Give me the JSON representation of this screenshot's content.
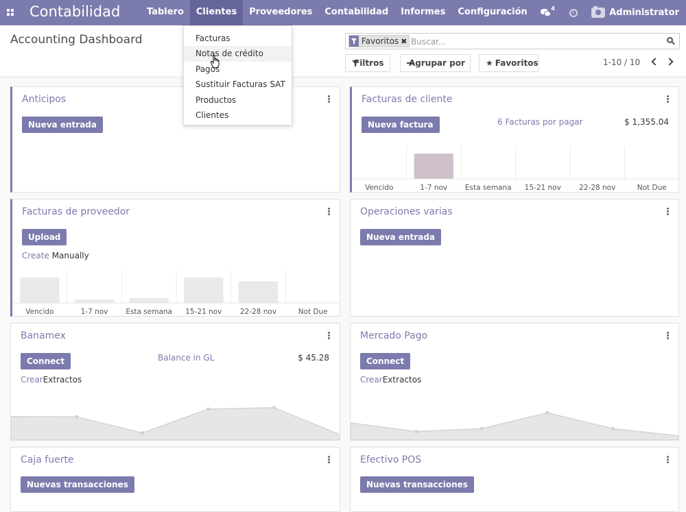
{
  "app": {
    "brand": "Contabilidad",
    "menu": [
      "Tablero",
      "Clientes",
      "Proveedores",
      "Contabilidad",
      "Informes",
      "Configuración"
    ],
    "active_menu": "Clientes",
    "chat_count": "4",
    "user": "Administrator"
  },
  "control_panel": {
    "title": "Accounting Dashboard",
    "facet": "Favoritos",
    "facet_close": "✖",
    "search_placeholder": "Buscar...",
    "buttons": {
      "filters": "Filtros",
      "group_by": "Agrupar por",
      "favorites": "Favoritos"
    },
    "pager": "1-10 / 10"
  },
  "dropdown": {
    "items": [
      "Facturas",
      "Notas de crédito",
      "Pagos",
      "Sustituir Facturas SAT",
      "Productos",
      "Clientes"
    ],
    "hover_index": 1
  },
  "colors": {
    "brand": "#7c7bad",
    "bar_fill": "#e9e9e9",
    "bar_highlight": "#cfc1cb",
    "area_fill": "#e6e6e6",
    "area_line": "#d4d4d4"
  },
  "cards": {
    "anticipos": {
      "title": "Anticipos",
      "button": "Nueva entrada"
    },
    "facturas_cliente": {
      "title": "Facturas de cliente",
      "button": "Nueva factura",
      "info": "6 Facturas por pagar",
      "amount": "$ 1,355.04"
    },
    "facturas_proveedor": {
      "title": "Facturas de proveedor",
      "button": "Upload",
      "link": "Create",
      "link_rest": " Manually"
    },
    "operaciones_varias": {
      "title": "Operaciones varias",
      "button": "Nueva entrada"
    },
    "banamex": {
      "title": "Banamex",
      "button": "Connect",
      "info": "Balance in GL",
      "amount": "$ 45.28",
      "link": "Crear",
      "link_rest": "Extractos"
    },
    "mercado_pago": {
      "title": "Mercado Pago",
      "button": "Connect",
      "link": "Crear",
      "link_rest": "Extractos"
    },
    "caja_fuerte": {
      "title": "Caja fuerte",
      "button": "Nuevas transacciones"
    },
    "efectivo_pos": {
      "title": "Efectivo POS",
      "button": "Nuevas transacciones"
    }
  },
  "chart_data": [
    {
      "type": "bar",
      "chart": "facturas_cliente",
      "categories": [
        "Vencido",
        "1-7 nov",
        "Esta semana",
        "15-21 nov",
        "22-28 nov",
        "Not Due"
      ],
      "values": [
        0,
        1,
        0,
        0,
        0,
        0
      ],
      "highlight_index": 1
    },
    {
      "type": "bar",
      "chart": "facturas_proveedor",
      "categories": [
        "Vencido",
        "1-7 nov",
        "Esta semana",
        "15-21 nov",
        "22-28 nov",
        "Not Due"
      ],
      "values": [
        1,
        0.13,
        0.2,
        1,
        0.85,
        0
      ]
    },
    {
      "type": "area",
      "chart": "banamex",
      "values": [
        0.72,
        0.71,
        0.15,
        0.98,
        1.03,
        0.1
      ]
    },
    {
      "type": "area",
      "chart": "mercado_pago",
      "values": [
        0.5,
        0.2,
        0.3,
        0.85,
        0.3,
        0.05
      ]
    }
  ]
}
